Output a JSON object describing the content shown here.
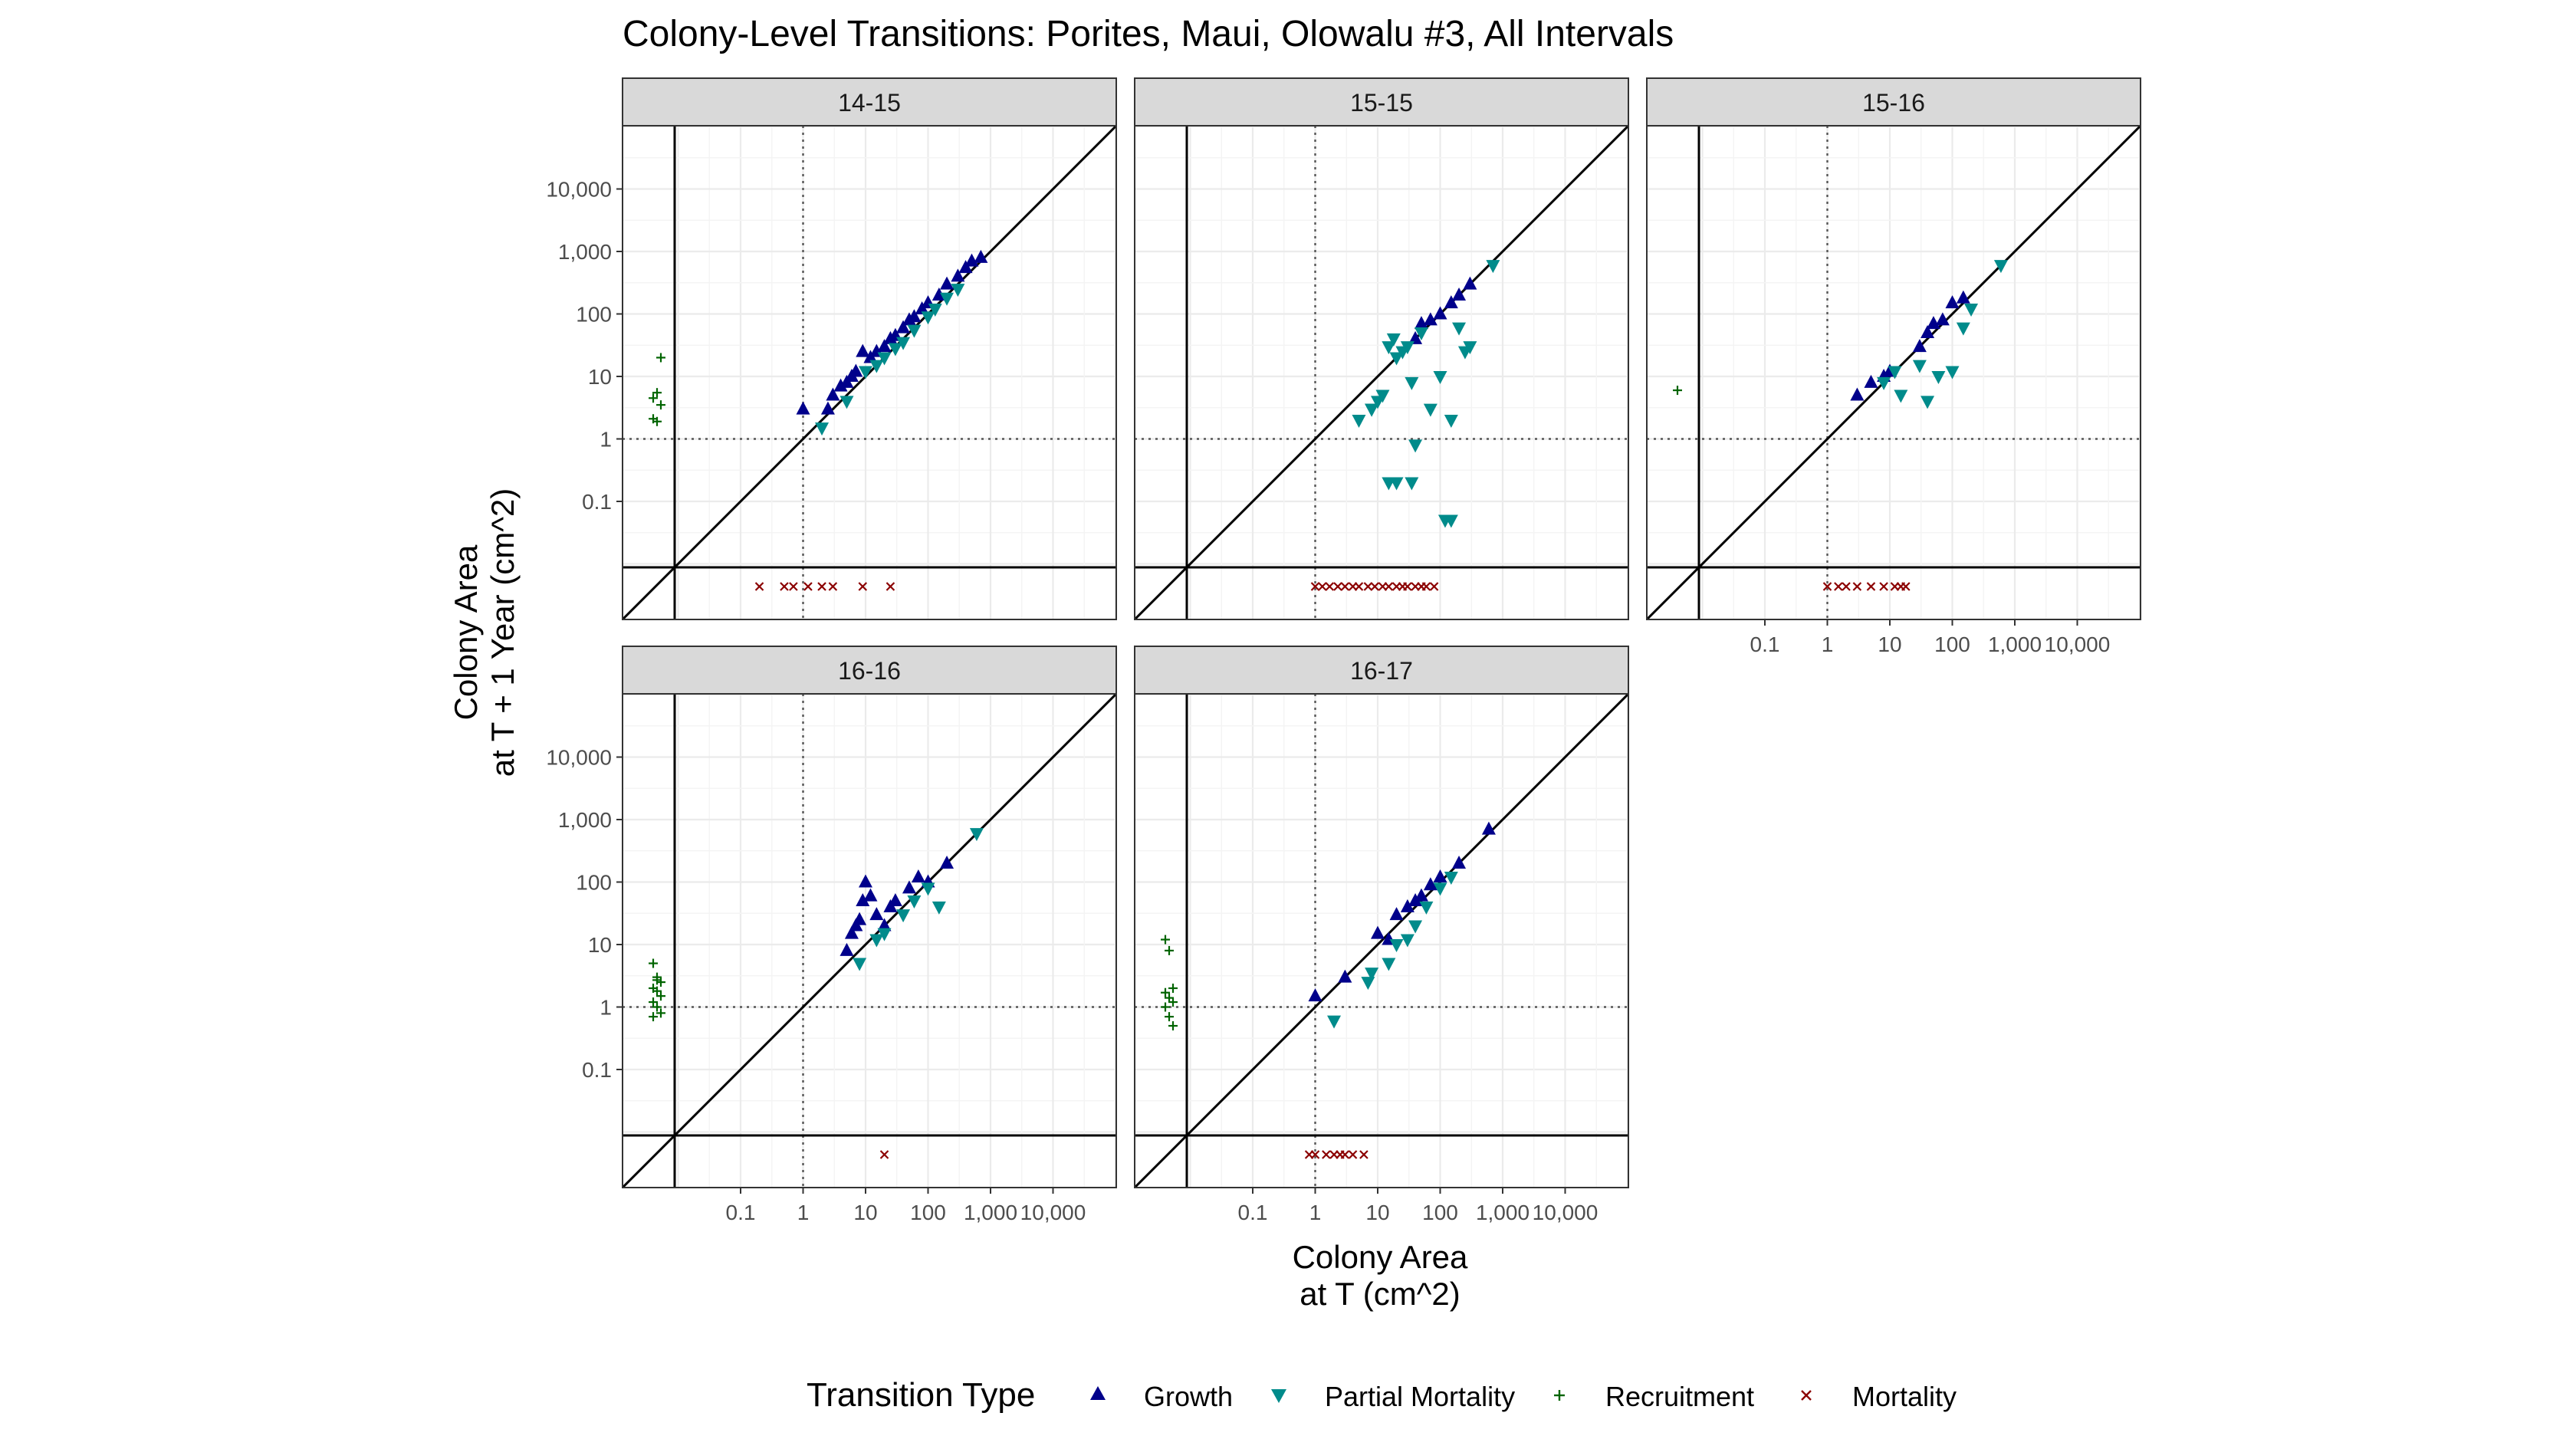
{
  "chart_data": {
    "type": "scatter",
    "title": "Colony-Level Transitions: Porites, Maui, Olowalu #3, All Intervals",
    "xlabel": [
      "Colony Area",
      "at T (cm^2)"
    ],
    "ylabel": [
      "Colony Area",
      "at T + 1 Year (cm^2)"
    ],
    "x_scale": "log10",
    "y_scale": "log10",
    "x_ticks": [
      "0.1",
      "1",
      "10",
      "100",
      "1,000",
      "10,000"
    ],
    "y_ticks": [
      "0.1",
      "1",
      "10",
      "100",
      "1,000",
      "10,000"
    ],
    "xlim": [
      0.0003,
      300000
    ],
    "ylim": [
      0.0003,
      300000
    ],
    "reference_lines": {
      "identity": true,
      "x_dotted": 1,
      "y_dotted": 1
    },
    "legend": {
      "title": "Transition Type",
      "position": "bottom",
      "items": [
        {
          "label": "Growth",
          "color": "#00008B",
          "symbol": "triangle-up"
        },
        {
          "label": "Partial Mortality",
          "color": "#008B8B",
          "symbol": "triangle-down"
        },
        {
          "label": "Recruitment",
          "color": "#006400",
          "symbol": "plus"
        },
        {
          "label": "Mortality",
          "color": "#8B0000",
          "symbol": "cross"
        }
      ]
    },
    "panels": [
      {
        "label": "14-15",
        "growth": [
          [
            1,
            3
          ],
          [
            2.5,
            3
          ],
          [
            3,
            5
          ],
          [
            4,
            7
          ],
          [
            5,
            8
          ],
          [
            6,
            10
          ],
          [
            7,
            12
          ],
          [
            9,
            25
          ],
          [
            12,
            20
          ],
          [
            15,
            25
          ],
          [
            20,
            30
          ],
          [
            25,
            40
          ],
          [
            30,
            45
          ],
          [
            40,
            60
          ],
          [
            50,
            80
          ],
          [
            60,
            90
          ],
          [
            80,
            120
          ],
          [
            100,
            150
          ],
          [
            150,
            200
          ],
          [
            200,
            300
          ],
          [
            300,
            400
          ],
          [
            400,
            550
          ],
          [
            500,
            700
          ],
          [
            700,
            800
          ]
        ],
        "partial": [
          [
            2,
            1.5
          ],
          [
            5,
            4
          ],
          [
            10,
            12
          ],
          [
            15,
            15
          ],
          [
            20,
            20
          ],
          [
            30,
            28
          ],
          [
            40,
            35
          ],
          [
            60,
            55
          ],
          [
            100,
            90
          ],
          [
            130,
            120
          ],
          [
            200,
            180
          ],
          [
            300,
            250
          ]
        ],
        "recruitment": [
          [
            2.1
          ],
          [
            1.9
          ],
          [
            3.5
          ],
          [
            4.5
          ],
          [
            5.5
          ],
          [
            20
          ]
        ],
        "mortality": [
          0.2,
          0.5,
          0.7,
          1.2,
          2,
          3,
          9,
          25
        ]
      },
      {
        "label": "15-15",
        "growth": [
          [
            40,
            40
          ],
          [
            50,
            70
          ],
          [
            70,
            80
          ],
          [
            100,
            100
          ],
          [
            150,
            150
          ],
          [
            200,
            200
          ],
          [
            300,
            300
          ]
        ],
        "partial": [
          [
            5,
            2
          ],
          [
            8,
            3
          ],
          [
            10,
            4
          ],
          [
            12,
            5
          ],
          [
            15,
            30
          ],
          [
            18,
            40
          ],
          [
            20,
            20
          ],
          [
            25,
            25
          ],
          [
            30,
            30
          ],
          [
            35,
            8
          ],
          [
            40,
            0.8
          ],
          [
            50,
            50
          ],
          [
            70,
            3
          ],
          [
            100,
            10
          ],
          [
            120,
            0.05
          ],
          [
            150,
            2
          ],
          [
            200,
            60
          ],
          [
            250,
            25
          ],
          [
            300,
            30
          ],
          [
            700,
            600
          ],
          [
            15,
            0.2
          ],
          [
            20,
            0.2
          ],
          [
            35,
            0.2
          ],
          [
            150,
            0.05
          ],
          [
            8,
            3
          ]
        ],
        "recruitment": [],
        "mortality": [
          1,
          1.3,
          1.7,
          2.3,
          3,
          4,
          5,
          7,
          9,
          12,
          15,
          20,
          25,
          30,
          40,
          50,
          60,
          80
        ]
      },
      {
        "label": "15-16",
        "growth": [
          [
            3,
            5
          ],
          [
            5,
            8
          ],
          [
            8,
            10
          ],
          [
            10,
            12
          ],
          [
            30,
            30
          ],
          [
            40,
            50
          ],
          [
            50,
            70
          ],
          [
            70,
            80
          ],
          [
            100,
            150
          ],
          [
            150,
            180
          ]
        ],
        "partial": [
          [
            8,
            8
          ],
          [
            12,
            12
          ],
          [
            15,
            5
          ],
          [
            30,
            15
          ],
          [
            40,
            4
          ],
          [
            60,
            10
          ],
          [
            100,
            12
          ],
          [
            150,
            60
          ],
          [
            200,
            120
          ],
          [
            600,
            600
          ]
        ],
        "recruitment": [
          [
            6
          ]
        ],
        "mortality": [
          1,
          1.5,
          2,
          3,
          5,
          8,
          12,
          15,
          18
        ]
      },
      {
        "label": "16-16",
        "growth": [
          [
            5,
            8
          ],
          [
            6,
            15
          ],
          [
            7,
            20
          ],
          [
            8,
            25
          ],
          [
            9,
            50
          ],
          [
            10,
            100
          ],
          [
            12,
            60
          ],
          [
            15,
            30
          ],
          [
            20,
            20
          ],
          [
            25,
            40
          ],
          [
            30,
            50
          ],
          [
            50,
            80
          ],
          [
            70,
            120
          ],
          [
            100,
            100
          ],
          [
            200,
            200
          ]
        ],
        "partial": [
          [
            8,
            5
          ],
          [
            15,
            12
          ],
          [
            20,
            15
          ],
          [
            40,
            30
          ],
          [
            60,
            50
          ],
          [
            100,
            80
          ],
          [
            150,
            40
          ],
          [
            600,
            600
          ]
        ],
        "recruitment": [
          [
            5
          ],
          [
            3
          ],
          [
            2.5
          ],
          [
            2
          ],
          [
            1.8
          ],
          [
            1.5
          ],
          [
            1.2
          ],
          [
            1
          ],
          [
            0.8
          ],
          [
            0.7
          ],
          [
            2.7
          ]
        ],
        "mortality": [
          20
        ]
      },
      {
        "label": "16-17",
        "growth": [
          [
            1,
            1.5
          ],
          [
            3,
            3
          ],
          [
            10,
            15
          ],
          [
            15,
            12
          ],
          [
            20,
            30
          ],
          [
            30,
            40
          ],
          [
            40,
            50
          ],
          [
            50,
            60
          ],
          [
            70,
            90
          ],
          [
            100,
            120
          ],
          [
            200,
            200
          ],
          [
            600,
            700
          ]
        ],
        "partial": [
          [
            2,
            0.6
          ],
          [
            7,
            2.5
          ],
          [
            8,
            3.5
          ],
          [
            15,
            5
          ],
          [
            20,
            10
          ],
          [
            30,
            12
          ],
          [
            40,
            20
          ],
          [
            60,
            40
          ],
          [
            100,
            80
          ],
          [
            150,
            120
          ]
        ],
        "recruitment": [
          [
            12
          ],
          [
            8
          ],
          [
            2
          ],
          [
            1.7
          ],
          [
            1.4
          ],
          [
            1.2
          ],
          [
            1
          ],
          [
            0.7
          ],
          [
            0.5
          ]
        ],
        "mortality": [
          0.8,
          1,
          1.5,
          2,
          2.5,
          3,
          4,
          6
        ]
      }
    ]
  }
}
